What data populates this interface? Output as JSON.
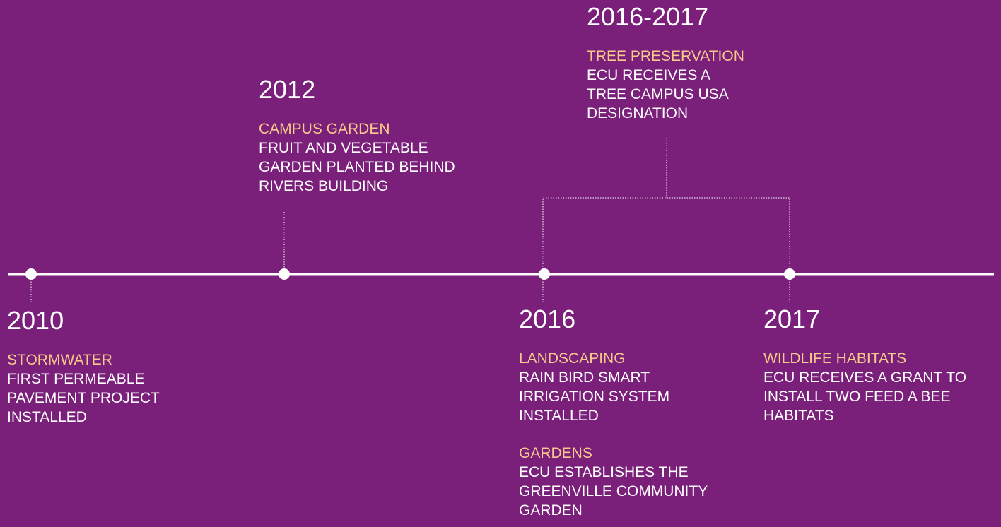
{
  "events": [
    {
      "year": "2010",
      "items": [
        {
          "heading": "STORMWATER",
          "lines": [
            "FIRST PERMEABLE",
            "PAVEMENT PROJECT",
            "INSTALLED"
          ]
        }
      ]
    },
    {
      "year": "2012",
      "items": [
        {
          "heading": "CAMPUS GARDEN",
          "lines": [
            "FRUIT AND VEGETABLE",
            "GARDEN PLANTED BEHIND",
            "RIVERS BUILDING"
          ]
        }
      ]
    },
    {
      "year": "2016-2017",
      "items": [
        {
          "heading": "TREE PRESERVATION",
          "lines": [
            "ECU RECEIVES A",
            "TREE CAMPUS USA",
            "DESIGNATION"
          ]
        }
      ]
    },
    {
      "year": "2016",
      "items": [
        {
          "heading": "LANDSCAPING",
          "lines": [
            "RAIN BIRD SMART",
            "IRRIGATION SYSTEM",
            "INSTALLED"
          ]
        },
        {
          "heading": "GARDENS",
          "lines": [
            "ECU ESTABLISHES THE",
            "GREENVILLE COMMUNITY",
            "GARDEN"
          ]
        }
      ]
    },
    {
      "year": "2017",
      "items": [
        {
          "heading": "WILDLIFE HABITATS",
          "lines": [
            "ECU RECEIVES A GRANT TO",
            "INSTALL TWO FEED A BEE",
            "HABITATS"
          ]
        }
      ]
    }
  ]
}
